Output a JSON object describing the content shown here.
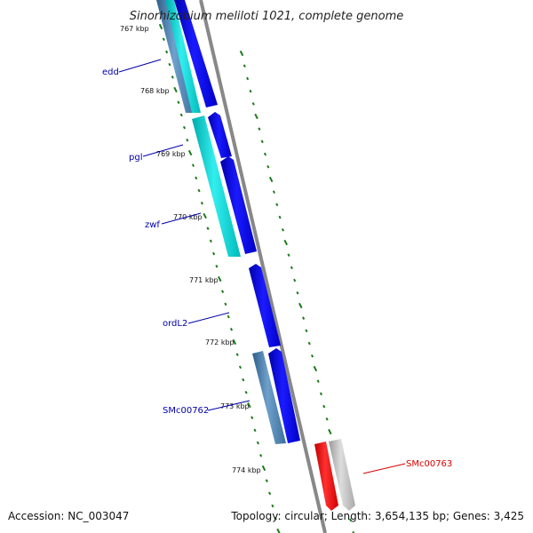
{
  "title": "Sinorhizobium meliloti 1021, complete genome",
  "footer": {
    "accession": "Accession: NC_003047",
    "topology": "Topology: circular; Length: 3,654,135 bp; Genes: 3,425"
  },
  "colors": {
    "forward_cds": "#0000ee",
    "other_cds": "#00cccc",
    "steel_cds": "#4682b4",
    "reverse_highlight": "#ee0000",
    "reverse_gray": "#bbbbbb",
    "backbone": "#888888",
    "tick_green": "#1a7a1a",
    "label_blue": "#0000aa",
    "label_red": "#dd0000"
  },
  "ticks": [
    {
      "label": "767 kbp"
    },
    {
      "label": "768 kbp"
    },
    {
      "label": "769 kbp"
    },
    {
      "label": "770 kbp"
    },
    {
      "label": "771 kbp"
    },
    {
      "label": "772 kbp"
    },
    {
      "label": "773 kbp"
    },
    {
      "label": "774 kbp"
    }
  ],
  "genes": [
    {
      "name": "edd",
      "color": "#0000aa"
    },
    {
      "name": "pgl",
      "color": "#0000aa"
    },
    {
      "name": "zwf",
      "color": "#0000aa"
    },
    {
      "name": "ordL2",
      "color": "#0000aa"
    },
    {
      "name": "SMc00762",
      "color": "#0000aa"
    },
    {
      "name": "SMc00763",
      "color": "#dd0000"
    }
  ]
}
